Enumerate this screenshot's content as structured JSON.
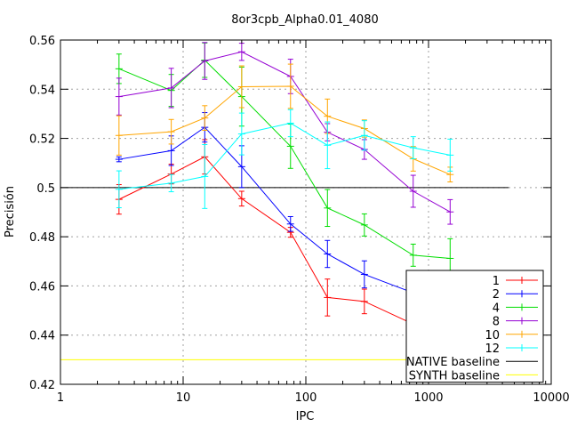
{
  "chart_data": {
    "type": "line",
    "title": "8or3cpb_Alpha0.01_4080",
    "xlabel": "IPC",
    "ylabel": "Precisión",
    "xscale": "log",
    "xlim": [
      1,
      10000
    ],
    "ylim": [
      0.42,
      0.56
    ],
    "x_ticks": [
      "1",
      "10",
      "100",
      "1000",
      "10000"
    ],
    "y_ticks": [
      "0.42",
      "0.44",
      "0.46",
      "0.48",
      "0.5",
      "0.52",
      "0.54",
      "0.56"
    ],
    "grid": true,
    "legend_position": "bottom-right",
    "x": [
      3,
      8,
      15,
      30,
      75,
      150,
      300,
      750,
      1500
    ],
    "series": [
      {
        "name": "1",
        "color": "#ff0000",
        "values": [
          0.4952,
          0.5055,
          0.5125,
          0.4955,
          0.4818,
          0.4553,
          0.4537,
          0.4445,
          0.4413
        ],
        "errors": [
          0.006,
          0.004,
          0.007,
          0.003,
          0.002,
          0.0075,
          0.005,
          0.001,
          0.004
        ]
      },
      {
        "name": "2",
        "color": "#0000ff",
        "values": [
          0.5115,
          0.515,
          0.5245,
          0.5085,
          0.4852,
          0.473,
          0.4647,
          0.4572,
          0.4545
        ],
        "errors": [
          0.001,
          0.006,
          0.006,
          0.0085,
          0.003,
          0.0055,
          0.0055,
          0.003,
          0.005
        ]
      },
      {
        "name": "4",
        "color": "#00dd00",
        "values": [
          0.5483,
          0.5395,
          0.5518,
          0.537,
          0.5168,
          0.4917,
          0.4848,
          0.4725,
          0.4712
        ],
        "errors": [
          0.006,
          0.0065,
          0.007,
          0.012,
          0.009,
          0.0075,
          0.0045,
          0.0045,
          0.008
        ]
      },
      {
        "name": "8",
        "color": "#9500d3",
        "values": [
          0.537,
          0.5405,
          0.5515,
          0.5552,
          0.5452,
          0.5225,
          0.5155,
          0.4985,
          0.4901
        ],
        "errors": [
          0.0075,
          0.008,
          0.0075,
          0.0035,
          0.007,
          0.0035,
          0.004,
          0.0065,
          0.005
        ]
      },
      {
        "name": "10",
        "color": "#ffa500",
        "values": [
          0.5212,
          0.5227,
          0.5283,
          0.541,
          0.5412,
          0.529,
          0.524,
          0.5117,
          0.5053
        ],
        "errors": [
          0.008,
          0.005,
          0.005,
          0.0085,
          0.009,
          0.007,
          0.0035,
          0.005,
          0.003
        ]
      },
      {
        "name": "12",
        "color": "#00ffff",
        "values": [
          0.4993,
          0.5018,
          0.5045,
          0.5218,
          0.5262,
          0.5172,
          0.5212,
          0.5162,
          0.5132
        ],
        "errors": [
          0.0075,
          0.0035,
          0.013,
          0.0085,
          0.0055,
          0.0095,
          0.006,
          0.0045,
          0.0065
        ]
      }
    ],
    "baselines": [
      {
        "name": "NATIVE baseline",
        "color": "#000000",
        "value": 0.5,
        "x_range": [
          1,
          4500
        ]
      },
      {
        "name": "SYNTH baseline",
        "color": "#ffff00",
        "value": 0.43,
        "x_range": [
          1,
          4500
        ]
      }
    ]
  }
}
